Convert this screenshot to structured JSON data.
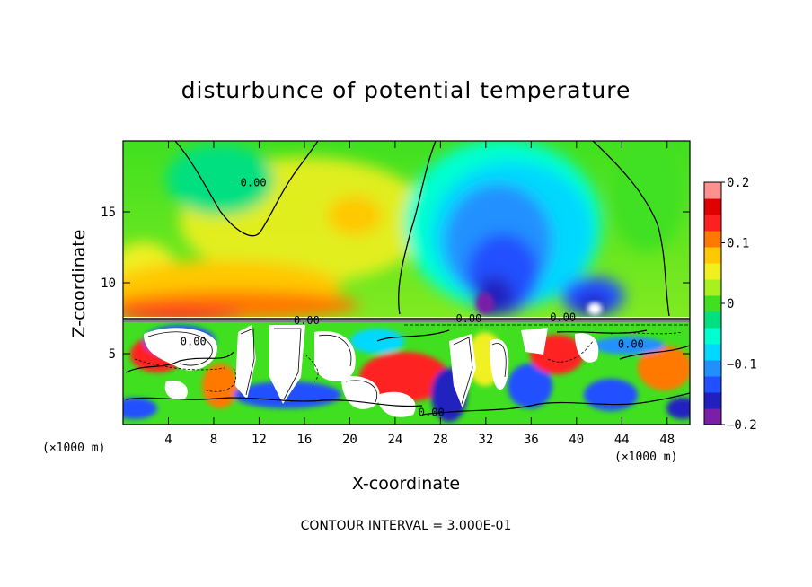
{
  "chart_data": {
    "type": "heatmap",
    "title": "disturbunce of potential temperature",
    "xlabel": "X-coordinate",
    "ylabel": "Z-coordinate",
    "x_unit_left": "(×1000 m)",
    "x_unit_right": "(×1000 m)",
    "xlim": [
      0,
      50
    ],
    "ylim": [
      0,
      20
    ],
    "x_ticks": [
      4,
      8,
      12,
      16,
      20,
      24,
      28,
      32,
      36,
      40,
      44,
      48
    ],
    "x_tick_labels": [
      "4",
      "8",
      "12",
      "16",
      "20",
      "24",
      "28",
      "32",
      "36",
      "40",
      "44",
      "48"
    ],
    "y_ticks": [
      5,
      10,
      15
    ],
    "y_tick_labels": [
      "5",
      "10",
      "15"
    ],
    "colorbar": {
      "min": -0.2,
      "max": 0.2,
      "ticks": [
        0.2,
        0.1,
        0,
        -0.1,
        -0.2
      ],
      "tick_labels": [
        "0.2",
        "0.1",
        "0",
        "−0.1",
        "−0.2"
      ],
      "colors": [
        "#7a1fa8",
        "#2020c0",
        "#2050ff",
        "#2090ff",
        "#00d8ff",
        "#00ffd0",
        "#00e080",
        "#40e020",
        "#a8f020",
        "#f0f020",
        "#ffc800",
        "#ff7800",
        "#ff2020",
        "#e00000",
        "#ff9090"
      ]
    },
    "contour_labels": [
      {
        "text": "0.00",
        "x": 11.5,
        "z": 16.8
      },
      {
        "text": "0.00",
        "x": 16.2,
        "z": 7.1
      },
      {
        "text": "0.00",
        "x": 6.2,
        "z": 5.6
      },
      {
        "text": "0.00",
        "x": 27.2,
        "z": 0.6
      },
      {
        "text": "0.00",
        "x": 38.8,
        "z": 7.3
      },
      {
        "text": "0.00",
        "x": 44.8,
        "z": 5.4
      },
      {
        "text": "0.00",
        "x": 30.5,
        "z": 7.2
      }
    ],
    "annotation": "CONTOUR INTERVAL = 3.000E-01"
  },
  "colors": {
    "zero_contour": "#000000",
    "background": "#ffffff"
  }
}
